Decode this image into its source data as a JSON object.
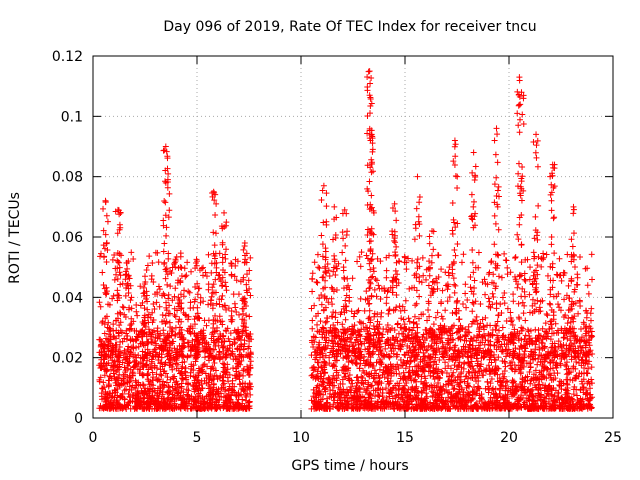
{
  "chart_data": {
    "type": "scatter",
    "title": "Day 096 of 2019, Rate Of TEC Index for receiver tncu",
    "xlabel": "GPS time / hours",
    "ylabel": "ROTI / TECUs",
    "xlim": [
      0,
      25
    ],
    "ylim": [
      0,
      0.12
    ],
    "xticks": [
      0,
      5,
      10,
      15,
      20,
      25
    ],
    "xtick_labels": [
      "0",
      "5",
      "10",
      "15",
      "20",
      "25"
    ],
    "yticks": [
      0,
      0.02,
      0.04,
      0.06,
      0.08,
      0.1,
      0.12
    ],
    "ytick_labels": [
      "0",
      "0.02",
      "0.04",
      "0.06",
      "0.08",
      "0.1",
      "0.12"
    ],
    "grid": true,
    "marker": "+",
    "color": "#ff0000",
    "data_gap_hours": [
      7.6,
      10.5
    ],
    "series": [
      {
        "name": "ROTI",
        "coverage_hours": [
          [
            0.3,
            7.6
          ],
          [
            10.5,
            24.0
          ]
        ],
        "baseline_range": [
          0.003,
          0.03
        ],
        "peaks": [
          {
            "x": 0.6,
            "y": 0.072
          },
          {
            "x": 1.2,
            "y": 0.069
          },
          {
            "x": 1.7,
            "y": 0.052
          },
          {
            "x": 2.5,
            "y": 0.047
          },
          {
            "x": 3.5,
            "y": 0.09
          },
          {
            "x": 3.6,
            "y": 0.079
          },
          {
            "x": 4.2,
            "y": 0.05
          },
          {
            "x": 5.0,
            "y": 0.052
          },
          {
            "x": 5.8,
            "y": 0.075
          },
          {
            "x": 6.3,
            "y": 0.068
          },
          {
            "x": 7.3,
            "y": 0.058
          },
          {
            "x": 11.1,
            "y": 0.077
          },
          {
            "x": 11.6,
            "y": 0.07
          },
          {
            "x": 12.1,
            "y": 0.069
          },
          {
            "x": 13.3,
            "y": 0.115
          },
          {
            "x": 13.3,
            "y": 0.107
          },
          {
            "x": 13.4,
            "y": 0.094
          },
          {
            "x": 14.5,
            "y": 0.071
          },
          {
            "x": 15.6,
            "y": 0.08
          },
          {
            "x": 16.3,
            "y": 0.062
          },
          {
            "x": 17.4,
            "y": 0.092
          },
          {
            "x": 18.3,
            "y": 0.088
          },
          {
            "x": 19.4,
            "y": 0.096
          },
          {
            "x": 20.5,
            "y": 0.113
          },
          {
            "x": 20.6,
            "y": 0.108
          },
          {
            "x": 21.3,
            "y": 0.094
          },
          {
            "x": 22.1,
            "y": 0.084
          },
          {
            "x": 23.1,
            "y": 0.07
          }
        ]
      }
    ]
  }
}
